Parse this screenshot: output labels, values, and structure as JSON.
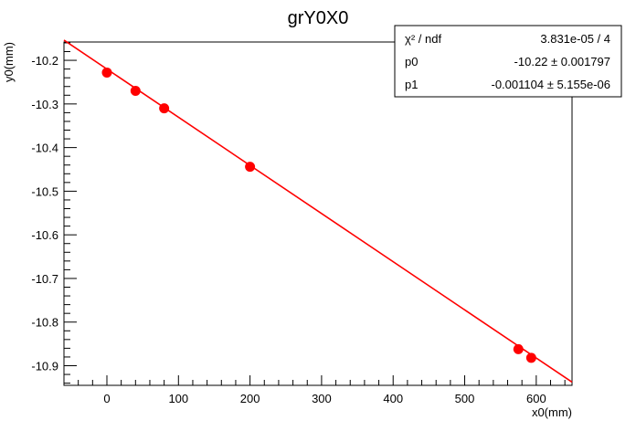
{
  "chart_data": {
    "type": "scatter",
    "title": "grY0X0",
    "xlabel": "x0(mm)",
    "ylabel": "y0(mm)",
    "xlim": [
      -60,
      650
    ],
    "ylim": [
      -10.945,
      -10.158
    ],
    "x_ticks": [
      0,
      100,
      200,
      300,
      400,
      500,
      600
    ],
    "y_ticks": [
      -10.2,
      -10.3,
      -10.4,
      -10.5,
      -10.6,
      -10.7,
      -10.8,
      -10.9
    ],
    "x_tick_labels": [
      "0",
      "100",
      "200",
      "300",
      "400",
      "500",
      "600"
    ],
    "y_tick_labels": [
      "-10.2",
      "-10.3",
      "-10.4",
      "-10.5",
      "-10.6",
      "-10.7",
      "-10.8",
      "-10.9"
    ],
    "series": [
      {
        "type": "scatter",
        "color": "#ff0000",
        "x": [
          0,
          40,
          80,
          200,
          575,
          593
        ],
        "y": [
          -10.228,
          -10.27,
          -10.31,
          -10.444,
          -10.862,
          -10.882
        ]
      }
    ],
    "fit": {
      "type": "line",
      "color": "#ff0000",
      "intercept": -10.22,
      "slope": -0.001104,
      "x_range": [
        -60,
        650
      ]
    },
    "stats_box": {
      "rows": [
        {
          "label": "χ² / ndf",
          "value": "3.831e-05 / 4"
        },
        {
          "label": "p0",
          "value": "-10.22 ± 0.001797"
        },
        {
          "label": "p1",
          "value": "-0.001104 ± 5.155e-06"
        }
      ]
    },
    "grid": false,
    "legend": "none"
  }
}
